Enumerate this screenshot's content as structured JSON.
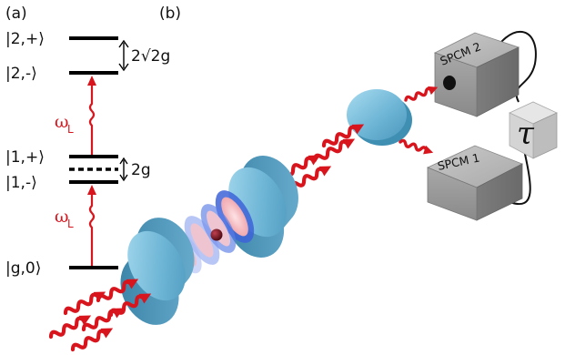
{
  "panels": {
    "a": "(a)",
    "b": "(b)"
  },
  "levels": [
    {
      "id": "2plus",
      "label": "|2,+⟩"
    },
    {
      "id": "2minus",
      "label": "|2,-⟩"
    },
    {
      "id": "1plus",
      "label": "|1,+⟩"
    },
    {
      "id": "1minus",
      "label": "|1,-⟩"
    },
    {
      "id": "g0",
      "label": "|g,0⟩"
    }
  ],
  "splittings": {
    "upper": "2√2g",
    "lower": "2g"
  },
  "laser_labels": [
    {
      "main": "ω",
      "sub": "L"
    },
    {
      "main": "ω",
      "sub": "L"
    }
  ],
  "detectors": {
    "spcm1": "SPCM 1",
    "spcm2": "SPCM 2"
  },
  "delay_symbol": "τ",
  "colors": {
    "laser": "#d8141c",
    "mirror": "#6fb6d6",
    "mirror_dark": "#3f8fb3",
    "detector": "#9a9a9a",
    "atom": "#6e0d14",
    "mode_blue": "#2f55c8",
    "mode_pink": "#f3b9be"
  }
}
